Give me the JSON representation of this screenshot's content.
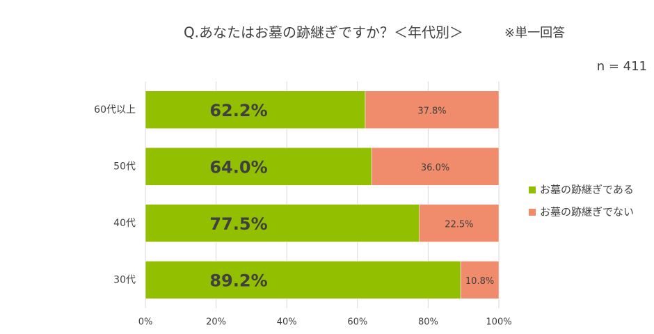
{
  "chart_data": {
    "type": "stacked-barh",
    "title": "Q.あなたはお墓の跡継ぎですか？＜年代別＞",
    "note": "※単一回答",
    "sample": "n = 411",
    "categories": [
      "60代以上",
      "50代",
      "40代",
      "30代"
    ],
    "series": [
      {
        "name": "お墓の跡継ぎである",
        "color": "#92c000",
        "values": [
          62.2,
          64.0,
          77.5,
          89.2
        ],
        "value_labels": [
          "62.2%",
          "64.0%",
          "77.5%",
          "89.2%"
        ]
      },
      {
        "name": "お墓の跡継ぎでない",
        "color": "#f08c6c",
        "values": [
          37.8,
          36.0,
          22.5,
          10.8
        ],
        "value_labels": [
          "37.8%",
          "36.0%",
          "22.5%",
          "10.8%"
        ]
      }
    ],
    "xlim": [
      0,
      100
    ],
    "xticks": [
      {
        "value": 0,
        "label": "0%"
      },
      {
        "value": 20,
        "label": "20%"
      },
      {
        "value": 40,
        "label": "40%"
      },
      {
        "value": 60,
        "label": "60%"
      },
      {
        "value": 80,
        "label": "80%"
      },
      {
        "value": 100,
        "label": "100%"
      }
    ],
    "grid": true,
    "legend": "right"
  }
}
